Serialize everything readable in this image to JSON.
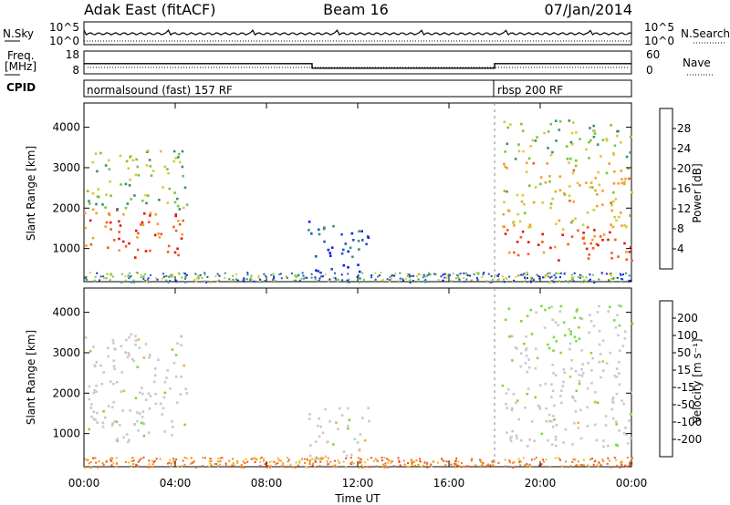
{
  "header": {
    "station": "Adak East (fitACF)",
    "beam": "Beam 16",
    "date": "07/Jan/2014"
  },
  "top_panels": {
    "nsky_label": "N.Sky",
    "nsky_tick_top": "10^5",
    "nsky_tick_bottom": "10^0",
    "nsearch_label": "N.Search",
    "nsearch_tick_top": "10^5",
    "nsearch_tick_bottom": "10^0",
    "freq_label_1": "Freq.",
    "freq_label_2": "[MHz]",
    "freq_tick_top": "18",
    "freq_tick_bottom": "8",
    "nave_label": "Nave",
    "nave_tick_top": "60",
    "nave_tick_bottom": "0",
    "cpid_label": "CPID",
    "cpid_mode_1": "normalsound (fast) 157 RF",
    "cpid_mode_2": "rbsp 200 RF"
  },
  "axes": {
    "xlabel": "Time UT",
    "ylabel": "Slant Range [km]",
    "x_ticks": [
      "00:00",
      "04:00",
      "08:00",
      "12:00",
      "16:00",
      "20:00",
      "00:00"
    ],
    "y_ticks": [
      "1000",
      "2000",
      "3000",
      "4000"
    ]
  },
  "colorbars": {
    "power": {
      "label": "Power [dB]",
      "ticks": [
        "4",
        "8",
        "12",
        "16",
        "20",
        "24",
        "28"
      ],
      "colors": [
        "#0d1ee6",
        "#2653c4",
        "#3a8f6e",
        "#72c73d",
        "#d7c93a",
        "#f0a02a",
        "#f25c1c",
        "#e8140f"
      ]
    },
    "velocity": {
      "label": "Velocity [m s⁻¹]",
      "ticks": [
        "200",
        "100",
        "50",
        "15",
        "-15",
        "-50",
        "-100",
        "-200"
      ],
      "colors": [
        "#1a2ad0",
        "#2d6fb3",
        "#2e9a52",
        "#7fd93f",
        "#c9c9c9",
        "#f0b534",
        "#f28a1e",
        "#f0531d",
        "#e81414"
      ]
    }
  },
  "chart_data": [
    {
      "type": "line",
      "title": "N.Sky / N.Search",
      "x": [
        "00:00",
        "04:00",
        "08:00",
        "12:00",
        "16:00",
        "20:00",
        "00:00"
      ],
      "series": [
        {
          "name": "N.Sky",
          "values": [
            3,
            3,
            3,
            3,
            3,
            3,
            3
          ]
        },
        {
          "name": "N.Search",
          "values": [
            1,
            1,
            1,
            1,
            1,
            1,
            1
          ]
        }
      ],
      "ylim": [
        0,
        5
      ]
    },
    {
      "type": "line",
      "title": "Freq. / Nave",
      "x": [
        "00:00",
        "10:00",
        "10:00",
        "18:00",
        "18:00",
        "24:00"
      ],
      "series": [
        {
          "name": "Freq. [MHz]",
          "values": [
            12.5,
            12.5,
            10.5,
            10.5,
            12.5,
            12.5
          ]
        },
        {
          "name": "Nave",
          "values": [
            22,
            22,
            22,
            22,
            22,
            22
          ]
        }
      ],
      "ylim": [
        8,
        18
      ]
    },
    {
      "type": "heatmap",
      "title": "Power [dB]",
      "xlabel": "Time UT",
      "ylabel": "Slant Range [km]",
      "xlim": [
        0,
        24
      ],
      "ylim": [
        180,
        4600
      ],
      "blobs": [
        {
          "t0": 0,
          "t1": 4.5,
          "r0": 800,
          "r1": 2000,
          "value": 26
        },
        {
          "t0": 0,
          "t1": 4.5,
          "r0": 2000,
          "r1": 3500,
          "value": 14
        },
        {
          "t0": 9.8,
          "t1": 12.5,
          "r0": 400,
          "r1": 1700,
          "value": 6
        },
        {
          "t0": 18.3,
          "t1": 24,
          "r0": 700,
          "r1": 1500,
          "value": 28
        },
        {
          "t0": 18.3,
          "t1": 24,
          "r0": 1500,
          "r1": 3200,
          "value": 20
        },
        {
          "t0": 18.3,
          "t1": 24,
          "r0": 3200,
          "r1": 4200,
          "value": 14
        }
      ]
    },
    {
      "type": "heatmap",
      "title": "Velocity [m s⁻¹]",
      "xlabel": "Time UT",
      "ylabel": "Slant Range [km]",
      "xlim": [
        0,
        24
      ],
      "ylim": [
        180,
        4600
      ],
      "blobs": [
        {
          "t0": 0,
          "t1": 4.5,
          "r0": 800,
          "r1": 2000,
          "value": 0
        },
        {
          "t0": 0,
          "t1": 4.5,
          "r0": 2000,
          "r1": 3500,
          "value": 0
        },
        {
          "t0": 9.8,
          "t1": 12.5,
          "r0": 400,
          "r1": 1700,
          "value": 0
        },
        {
          "t0": 18.3,
          "t1": 24,
          "r0": 700,
          "r1": 3000,
          "value": 0
        },
        {
          "t0": 18.3,
          "t1": 24,
          "r0": 3000,
          "r1": 4200,
          "value": 30
        }
      ]
    }
  ]
}
